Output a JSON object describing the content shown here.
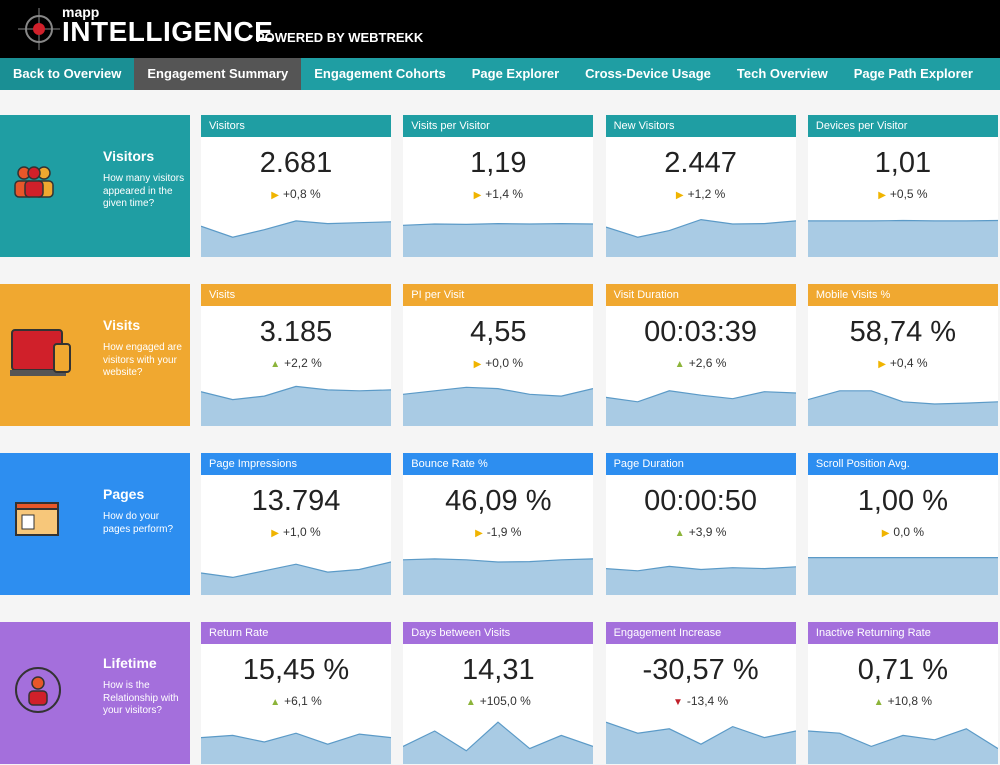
{
  "header": {
    "brand": "mapp",
    "title": "INTELLIGENCE",
    "powered": "POWERED BY WEBTREKK"
  },
  "nav": {
    "items": [
      "Back to Overview",
      "Engagement Summary",
      "Engagement Cohorts",
      "Page Explorer",
      "Cross-Device Usage",
      "Tech Overview",
      "Page Path Explorer"
    ],
    "active": 1
  },
  "spark_ylim": [
    0,
    100
  ],
  "sections": [
    {
      "title": "Visitors",
      "description": "How many visitors appeared in the given time?",
      "color": "#1f9ea3",
      "tiles": [
        {
          "label": "Visitors",
          "value": "2.681",
          "arrow": "▶",
          "arrow_color": "#f0b400",
          "change": "+0,8 %",
          "spark": [
            70,
            45,
            62,
            82,
            76,
            78,
            80
          ]
        },
        {
          "label": "Visits per Visitor",
          "value": "1,19",
          "arrow": "▶",
          "arrow_color": "#f0b400",
          "change": "+1,4 %",
          "spark": [
            72,
            75,
            74,
            76,
            75,
            76,
            75
          ]
        },
        {
          "label": "New Visitors",
          "value": "2.447",
          "arrow": "▶",
          "arrow_color": "#f0b400",
          "change": "+1,2 %",
          "spark": [
            68,
            45,
            60,
            85,
            75,
            76,
            82
          ]
        },
        {
          "label": "Devices per Visitor",
          "value": "1,01",
          "arrow": "▶",
          "arrow_color": "#f0b400",
          "change": "+0,5 %",
          "spark": [
            82,
            82,
            82,
            83,
            82,
            82,
            83
          ]
        }
      ]
    },
    {
      "title": "Visits",
      "description": "How engaged are visitors with your website?",
      "color": "#f0a830",
      "tiles": [
        {
          "label": "Visits",
          "value": "3.185",
          "arrow": "▲",
          "arrow_color": "#8cb43a",
          "change": "+2,2 %",
          "spark": [
            78,
            60,
            68,
            90,
            82,
            80,
            82
          ]
        },
        {
          "label": "PI per Visit",
          "value": "4,55",
          "arrow": "▶",
          "arrow_color": "#f0b400",
          "change": "+0,0 %",
          "spark": [
            72,
            80,
            88,
            85,
            72,
            68,
            85
          ]
        },
        {
          "label": "Visit Duration",
          "value": "00:03:39",
          "arrow": "▲",
          "arrow_color": "#8cb43a",
          "change": "+2,6 %",
          "spark": [
            65,
            55,
            80,
            70,
            62,
            78,
            75
          ]
        },
        {
          "label": "Mobile Visits %",
          "value": "58,74 %",
          "arrow": "▶",
          "arrow_color": "#f0b400",
          "change": "+0,4 %",
          "spark": [
            60,
            80,
            80,
            55,
            50,
            52,
            55
          ]
        }
      ]
    },
    {
      "title": "Pages",
      "description": "How do your pages perform?",
      "color": "#2d8ef0",
      "tiles": [
        {
          "label": "Page Impressions",
          "value": "13.794",
          "arrow": "▶",
          "arrow_color": "#f0b400",
          "change": "+1,0 %",
          "spark": [
            50,
            40,
            55,
            70,
            52,
            58,
            75
          ]
        },
        {
          "label": "Bounce Rate %",
          "value": "46,09 %",
          "arrow": "▶",
          "arrow_color": "#f0b400",
          "change": "-1,9 %",
          "spark": [
            80,
            82,
            80,
            75,
            76,
            80,
            82
          ]
        },
        {
          "label": "Page Duration",
          "value": "00:00:50",
          "arrow": "▲",
          "arrow_color": "#8cb43a",
          "change": "+3,9 %",
          "spark": [
            60,
            55,
            65,
            58,
            62,
            60,
            64
          ]
        },
        {
          "label": "Scroll Position Avg.",
          "value": "1,00 %",
          "arrow": "▶",
          "arrow_color": "#f0b400",
          "change": "0,0 %",
          "spark": [
            85,
            85,
            85,
            85,
            85,
            85,
            85
          ]
        }
      ]
    },
    {
      "title": "Lifetime",
      "description": "How is the Relationship with your visitors?",
      "color": "#a46fdc",
      "tiles": [
        {
          "label": "Return Rate",
          "value": "15,45 %",
          "arrow": "▲",
          "arrow_color": "#8cb43a",
          "change": "+6,1 %",
          "spark": [
            60,
            65,
            50,
            70,
            45,
            68,
            60
          ]
        },
        {
          "label": "Days between Visits",
          "value": "14,31",
          "arrow": "▲",
          "arrow_color": "#8cb43a",
          "change": "+105,0 %",
          "spark": [
            40,
            75,
            30,
            95,
            35,
            65,
            40
          ]
        },
        {
          "label": "Engagement Increase",
          "value": "-30,57 %",
          "arrow": "▼",
          "arrow_color": "#c0202a",
          "change": "-13,4 %",
          "spark": [
            95,
            70,
            80,
            45,
            85,
            60,
            75
          ]
        },
        {
          "label": "Inactive Returning Rate",
          "value": "0,71 %",
          "arrow": "▲",
          "arrow_color": "#8cb43a",
          "change": "+10,8 %",
          "spark": [
            75,
            70,
            40,
            65,
            55,
            80,
            35
          ]
        }
      ]
    }
  ]
}
